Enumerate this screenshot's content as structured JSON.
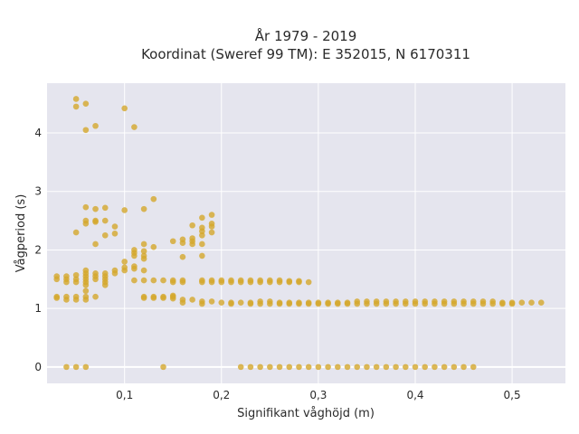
{
  "chart_data": {
    "type": "scatter",
    "title_line1": "År 1979 - 2019",
    "title_line2": "Koordinat (Sweref 99 TM): E 352015, N 6170311",
    "xlabel": "Signifikant våghöjd (m)",
    "ylabel": "Vågperiod (s)",
    "xlim": [
      0.02,
      0.555
    ],
    "ylim": [
      -0.28,
      4.85
    ],
    "x_ticks": [
      0.1,
      0.2,
      0.3,
      0.4,
      0.5
    ],
    "x_tick_labels": [
      "0,1",
      "0,2",
      "0,3",
      "0,4",
      "0,5"
    ],
    "y_ticks": [
      0,
      1,
      2,
      3,
      4
    ],
    "y_tick_labels": [
      "0",
      "1",
      "2",
      "3",
      "4"
    ],
    "grid": true,
    "legend": "none",
    "colors": {
      "marker": "#d4a72c",
      "plot_bg": "#e5e5ee",
      "grid": "#ffffff"
    },
    "points": [
      [
        0.03,
        1.55
      ],
      [
        0.03,
        1.5
      ],
      [
        0.03,
        1.2
      ],
      [
        0.03,
        1.18
      ],
      [
        0.04,
        1.55
      ],
      [
        0.04,
        1.5
      ],
      [
        0.04,
        1.45
      ],
      [
        0.04,
        1.2
      ],
      [
        0.04,
        1.15
      ],
      [
        0.04,
        0
      ],
      [
        0.05,
        4.58
      ],
      [
        0.05,
        4.45
      ],
      [
        0.05,
        2.3
      ],
      [
        0.05,
        1.57
      ],
      [
        0.05,
        1.5
      ],
      [
        0.05,
        1.45
      ],
      [
        0.05,
        1.2
      ],
      [
        0.05,
        1.15
      ],
      [
        0.05,
        0
      ],
      [
        0.06,
        4.5
      ],
      [
        0.06,
        4.05
      ],
      [
        0.06,
        2.73
      ],
      [
        0.06,
        2.5
      ],
      [
        0.06,
        2.45
      ],
      [
        0.06,
        1.65
      ],
      [
        0.06,
        1.6
      ],
      [
        0.06,
        1.55
      ],
      [
        0.06,
        1.5
      ],
      [
        0.06,
        1.45
      ],
      [
        0.06,
        1.4
      ],
      [
        0.06,
        1.3
      ],
      [
        0.06,
        1.2
      ],
      [
        0.06,
        1.15
      ],
      [
        0.06,
        0
      ],
      [
        0.07,
        4.12
      ],
      [
        0.07,
        2.7
      ],
      [
        0.07,
        2.5
      ],
      [
        0.07,
        2.48
      ],
      [
        0.07,
        2.1
      ],
      [
        0.07,
        1.6
      ],
      [
        0.07,
        1.55
      ],
      [
        0.07,
        1.5
      ],
      [
        0.07,
        1.2
      ],
      [
        0.08,
        2.72
      ],
      [
        0.08,
        2.5
      ],
      [
        0.08,
        2.25
      ],
      [
        0.08,
        1.6
      ],
      [
        0.08,
        1.55
      ],
      [
        0.08,
        1.5
      ],
      [
        0.08,
        1.45
      ],
      [
        0.08,
        1.4
      ],
      [
        0.09,
        2.4
      ],
      [
        0.09,
        2.28
      ],
      [
        0.09,
        1.65
      ],
      [
        0.09,
        1.6
      ],
      [
        0.1,
        4.42
      ],
      [
        0.1,
        2.68
      ],
      [
        0.1,
        1.8
      ],
      [
        0.1,
        1.7
      ],
      [
        0.1,
        1.65
      ],
      [
        0.11,
        4.1
      ],
      [
        0.11,
        2.0
      ],
      [
        0.11,
        1.95
      ],
      [
        0.11,
        1.9
      ],
      [
        0.11,
        1.72
      ],
      [
        0.11,
        1.68
      ],
      [
        0.11,
        1.48
      ],
      [
        0.12,
        2.7
      ],
      [
        0.12,
        2.1
      ],
      [
        0.12,
        1.98
      ],
      [
        0.12,
        1.9
      ],
      [
        0.12,
        1.85
      ],
      [
        0.12,
        1.65
      ],
      [
        0.12,
        1.48
      ],
      [
        0.12,
        1.2
      ],
      [
        0.12,
        1.18
      ],
      [
        0.13,
        2.87
      ],
      [
        0.13,
        2.05
      ],
      [
        0.13,
        1.48
      ],
      [
        0.13,
        1.2
      ],
      [
        0.13,
        1.18
      ],
      [
        0.14,
        1.48
      ],
      [
        0.14,
        1.2
      ],
      [
        0.14,
        1.18
      ],
      [
        0.14,
        0
      ],
      [
        0.15,
        2.15
      ],
      [
        0.15,
        1.48
      ],
      [
        0.15,
        1.45
      ],
      [
        0.15,
        1.22
      ],
      [
        0.15,
        1.2
      ],
      [
        0.15,
        1.17
      ],
      [
        0.16,
        2.18
      ],
      [
        0.16,
        2.12
      ],
      [
        0.16,
        1.88
      ],
      [
        0.16,
        1.48
      ],
      [
        0.16,
        1.45
      ],
      [
        0.16,
        1.15
      ],
      [
        0.16,
        1.1
      ],
      [
        0.17,
        2.42
      ],
      [
        0.17,
        2.2
      ],
      [
        0.17,
        2.15
      ],
      [
        0.17,
        2.1
      ],
      [
        0.17,
        1.15
      ],
      [
        0.18,
        2.55
      ],
      [
        0.18,
        2.38
      ],
      [
        0.18,
        2.32
      ],
      [
        0.18,
        2.25
      ],
      [
        0.18,
        2.1
      ],
      [
        0.18,
        1.9
      ],
      [
        0.18,
        1.48
      ],
      [
        0.18,
        1.45
      ],
      [
        0.18,
        1.12
      ],
      [
        0.18,
        1.08
      ],
      [
        0.19,
        2.6
      ],
      [
        0.19,
        2.45
      ],
      [
        0.19,
        2.4
      ],
      [
        0.19,
        2.3
      ],
      [
        0.19,
        1.48
      ],
      [
        0.19,
        1.45
      ],
      [
        0.19,
        1.12
      ],
      [
        0.2,
        1.48
      ],
      [
        0.2,
        1.45
      ],
      [
        0.2,
        1.1
      ],
      [
        0.21,
        1.48
      ],
      [
        0.21,
        1.45
      ],
      [
        0.21,
        1.1
      ],
      [
        0.21,
        1.08
      ],
      [
        0.22,
        1.48
      ],
      [
        0.22,
        1.45
      ],
      [
        0.22,
        1.1
      ],
      [
        0.22,
        0
      ],
      [
        0.23,
        1.48
      ],
      [
        0.23,
        1.45
      ],
      [
        0.23,
        1.1
      ],
      [
        0.23,
        1.08
      ],
      [
        0.23,
        0
      ],
      [
        0.24,
        1.48
      ],
      [
        0.24,
        1.45
      ],
      [
        0.24,
        1.12
      ],
      [
        0.24,
        1.08
      ],
      [
        0.24,
        0
      ],
      [
        0.25,
        1.48
      ],
      [
        0.25,
        1.45
      ],
      [
        0.25,
        1.12
      ],
      [
        0.25,
        1.08
      ],
      [
        0.25,
        0
      ],
      [
        0.26,
        1.48
      ],
      [
        0.26,
        1.45
      ],
      [
        0.26,
        1.1
      ],
      [
        0.26,
        1.08
      ],
      [
        0.26,
        0
      ],
      [
        0.27,
        1.47
      ],
      [
        0.27,
        1.45
      ],
      [
        0.27,
        1.1
      ],
      [
        0.27,
        1.08
      ],
      [
        0.27,
        0
      ],
      [
        0.28,
        1.47
      ],
      [
        0.28,
        1.45
      ],
      [
        0.28,
        1.1
      ],
      [
        0.28,
        1.08
      ],
      [
        0.28,
        0
      ],
      [
        0.29,
        1.45
      ],
      [
        0.29,
        1.1
      ],
      [
        0.29,
        1.08
      ],
      [
        0.29,
        0
      ],
      [
        0.3,
        1.1
      ],
      [
        0.3,
        1.08
      ],
      [
        0.3,
        0
      ],
      [
        0.31,
        1.1
      ],
      [
        0.31,
        1.08
      ],
      [
        0.31,
        0
      ],
      [
        0.32,
        1.1
      ],
      [
        0.32,
        1.08
      ],
      [
        0.32,
        0
      ],
      [
        0.33,
        1.1
      ],
      [
        0.33,
        1.08
      ],
      [
        0.33,
        0
      ],
      [
        0.34,
        1.12
      ],
      [
        0.34,
        1.08
      ],
      [
        0.34,
        0
      ],
      [
        0.35,
        1.12
      ],
      [
        0.35,
        1.08
      ],
      [
        0.35,
        0
      ],
      [
        0.36,
        1.12
      ],
      [
        0.36,
        1.08
      ],
      [
        0.36,
        0
      ],
      [
        0.37,
        1.12
      ],
      [
        0.37,
        1.08
      ],
      [
        0.37,
        0
      ],
      [
        0.38,
        1.12
      ],
      [
        0.38,
        1.08
      ],
      [
        0.38,
        0
      ],
      [
        0.39,
        1.12
      ],
      [
        0.39,
        1.08
      ],
      [
        0.39,
        0
      ],
      [
        0.4,
        1.12
      ],
      [
        0.4,
        1.08
      ],
      [
        0.4,
        0
      ],
      [
        0.41,
        1.12
      ],
      [
        0.41,
        1.08
      ],
      [
        0.41,
        0
      ],
      [
        0.42,
        1.12
      ],
      [
        0.42,
        1.08
      ],
      [
        0.42,
        0
      ],
      [
        0.43,
        1.12
      ],
      [
        0.43,
        1.08
      ],
      [
        0.43,
        0
      ],
      [
        0.44,
        1.12
      ],
      [
        0.44,
        1.08
      ],
      [
        0.44,
        0
      ],
      [
        0.45,
        1.12
      ],
      [
        0.45,
        1.08
      ],
      [
        0.45,
        0
      ],
      [
        0.46,
        1.12
      ],
      [
        0.46,
        1.08
      ],
      [
        0.46,
        0
      ],
      [
        0.47,
        1.12
      ],
      [
        0.47,
        1.08
      ],
      [
        0.48,
        1.12
      ],
      [
        0.48,
        1.08
      ],
      [
        0.49,
        1.1
      ],
      [
        0.49,
        1.08
      ],
      [
        0.5,
        1.1
      ],
      [
        0.5,
        1.08
      ],
      [
        0.51,
        1.1
      ],
      [
        0.52,
        1.1
      ],
      [
        0.53,
        1.1
      ]
    ]
  }
}
